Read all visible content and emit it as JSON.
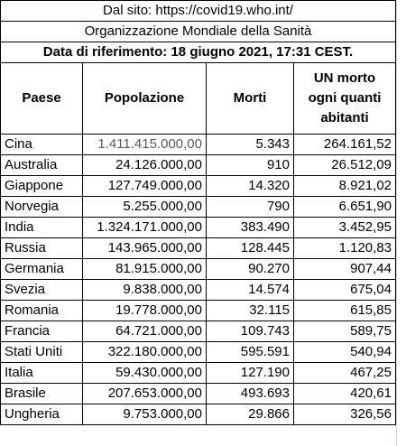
{
  "source_line": "Dal sito: https://covid19.who.int/",
  "organization_line": "Organizzazione Mondiale della Sanità",
  "reference_line": "Data di riferimento: 18 giugno 2021, 17:31 CEST.",
  "headers": {
    "country": "Paese",
    "population": "Popolazione",
    "deaths": "Morti",
    "ratio_line1": "UN morto",
    "ratio_line2": "ogni quanti",
    "ratio_line3": "abitanti"
  },
  "rows": [
    {
      "country": "Cina",
      "population": "1.411.415.000,00",
      "deaths": "5.343",
      "ratio": "264.161,52"
    },
    {
      "country": "Australia",
      "population": "24.126.000,00",
      "deaths": "910",
      "ratio": "26.512,09"
    },
    {
      "country": "Giappone",
      "population": "127.749.000,00",
      "deaths": "14.320",
      "ratio": "8.921,02"
    },
    {
      "country": "Norvegia",
      "population": "5.255.000,00",
      "deaths": "790",
      "ratio": "6.651,90"
    },
    {
      "country": "India",
      "population": "1.324.171.000,00",
      "deaths": "383.490",
      "ratio": "3.452,95"
    },
    {
      "country": "Russia",
      "population": "143.965.000,00",
      "deaths": "128.445",
      "ratio": "1.120,83"
    },
    {
      "country": "Germania",
      "population": "81.915.000,00",
      "deaths": "90.270",
      "ratio": "907,44"
    },
    {
      "country": "Svezia",
      "population": "9.838.000,00",
      "deaths": "14.574",
      "ratio": "675,04"
    },
    {
      "country": "Romania",
      "population": "19.778.000,00",
      "deaths": "32.115",
      "ratio": "615,85"
    },
    {
      "country": "Francia",
      "population": "64.721.000,00",
      "deaths": "109.743",
      "ratio": "589,75"
    },
    {
      "country": "Stati Uniti",
      "population": "322.180.000,00",
      "deaths": "595.591",
      "ratio": "540,94"
    },
    {
      "country": "Italia",
      "population": "59.430.000,00",
      "deaths": "127.190",
      "ratio": "467,25"
    },
    {
      "country": "Brasile",
      "population": "207.653.000,00",
      "deaths": "493.693",
      "ratio": "420,61"
    },
    {
      "country": "Ungheria",
      "population": "9.753.000,00",
      "deaths": "29.866",
      "ratio": "326,56"
    }
  ]
}
